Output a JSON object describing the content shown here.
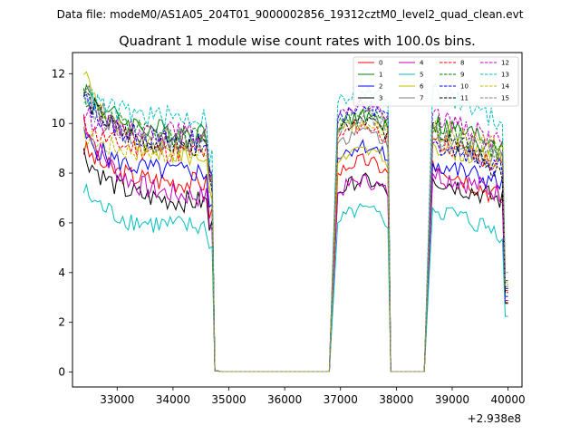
{
  "header": {
    "suptitle": "Data file: modeM0/AS1A05_204T01_9000002856_19312cztM0_level2_quad_clean.evt"
  },
  "chart_data": {
    "type": "line",
    "title": "Quadrant 1 module wise count rates with 100.0s bins.",
    "xlabel": "",
    "ylabel": "",
    "x_offset_label": "+2.938e8",
    "xlim": [
      32200,
      40250
    ],
    "ylim": [
      -0.6,
      12.85
    ],
    "x_ticks": [
      33000,
      34000,
      35000,
      36000,
      37000,
      38000,
      39000,
      40000
    ],
    "x_tick_labels": [
      "33000",
      "34000",
      "35000",
      "36000",
      "37000",
      "38000",
      "39000",
      "40000"
    ],
    "y_ticks": [
      0,
      2,
      4,
      6,
      8,
      10,
      12
    ],
    "y_tick_labels": [
      "0",
      "2",
      "4",
      "6",
      "8",
      "10",
      "12"
    ],
    "legend_position": "top-right",
    "series": [
      {
        "name": "0",
        "color": "#ff0000",
        "style": "solid",
        "base1": 7.6,
        "start1": 9.0,
        "base2": 8.0,
        "base3": 7.0,
        "peak3": 8.5
      },
      {
        "name": "1",
        "color": "#008000",
        "style": "solid",
        "base1": 9.6,
        "start1": 11.5,
        "base2": 9.8,
        "base3": 9.2,
        "peak3": 10.0
      },
      {
        "name": "2",
        "color": "#0000ff",
        "style": "solid",
        "base1": 8.0,
        "start1": 9.5,
        "base2": 8.6,
        "base3": 7.6,
        "peak3": 8.4
      },
      {
        "name": "3",
        "color": "#000000",
        "style": "solid",
        "base1": 6.8,
        "start1": 8.8,
        "base2": 7.2,
        "base3": 6.9,
        "peak3": 7.8
      },
      {
        "name": "4",
        "color": "#bf00bf",
        "style": "solid",
        "base1": 7.0,
        "start1": 10.2,
        "base2": 7.2,
        "base3": 7.2,
        "peak3": 8.0
      },
      {
        "name": "5",
        "color": "#00bfbf",
        "style": "solid",
        "base1": 5.8,
        "start1": 7.3,
        "base2": 6.0,
        "base3": 5.6,
        "peak3": 6.6
      },
      {
        "name": "6",
        "color": "#bfbf00",
        "style": "solid",
        "base1": 8.6,
        "start1": 12.2,
        "base2": 8.4,
        "base3": 8.4,
        "peak3": 9.2
      },
      {
        "name": "7",
        "color": "#808080",
        "style": "solid",
        "base1": 9.0,
        "start1": 11.6,
        "base2": 9.2,
        "base3": 8.6,
        "peak3": 9.4
      },
      {
        "name": "8",
        "color": "#ff0000",
        "style": "dashed",
        "base1": 8.8,
        "start1": 10.0,
        "base2": 9.4,
        "base3": 8.2,
        "peak3": 9.4
      },
      {
        "name": "9",
        "color": "#008000",
        "style": "dashed",
        "base1": 9.4,
        "start1": 11.2,
        "base2": 10.0,
        "base3": 8.8,
        "peak3": 9.8
      },
      {
        "name": "10",
        "color": "#0000ff",
        "style": "dashed",
        "base1": 9.2,
        "start1": 11.0,
        "base2": 10.2,
        "base3": 8.4,
        "peak3": 9.2
      },
      {
        "name": "11",
        "color": "#000000",
        "style": "dashed",
        "base1": 9.0,
        "start1": 11.3,
        "base2": 9.6,
        "base3": 8.0,
        "peak3": 10.0
      },
      {
        "name": "12",
        "color": "#bf00bf",
        "style": "dashed",
        "base1": 9.6,
        "start1": 10.4,
        "base2": 10.2,
        "base3": 9.2,
        "peak3": 10.4
      },
      {
        "name": "13",
        "color": "#00bfbf",
        "style": "dashed",
        "base1": 10.2,
        "start1": 11.2,
        "base2": 10.8,
        "base3": 10.0,
        "peak3": 11.4
      },
      {
        "name": "14",
        "color": "#bfbf00",
        "style": "dashed",
        "base1": 8.8,
        "start1": 9.5,
        "base2": 9.6,
        "base3": 9.0,
        "peak3": 9.8
      },
      {
        "name": "15",
        "color": "#808080",
        "style": "dashed",
        "base1": 9.2,
        "start1": 10.8,
        "base2": 9.8,
        "base3": 8.6,
        "peak3": 9.6
      }
    ]
  }
}
